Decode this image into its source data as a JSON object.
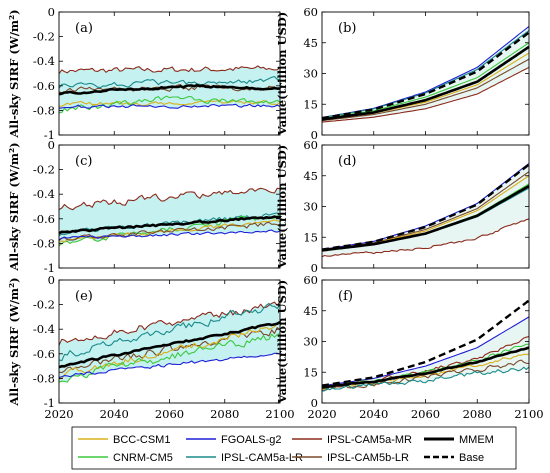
{
  "legend": {
    "entries": [
      {
        "name": "BCC-CSM1",
        "color": "#d9b01c",
        "style": "solid"
      },
      {
        "name": "FGOALS-g2",
        "color": "#1f1fd6",
        "style": "solid"
      },
      {
        "name": "IPSL-CAM5a-MR",
        "color": "#8c2a1c",
        "style": "solid"
      },
      {
        "name": "MMEM",
        "color": "#000000",
        "style": "bold"
      },
      {
        "name": "CNRM-CM5",
        "color": "#3ec83e",
        "style": "solid"
      },
      {
        "name": "IPSL-CAM5a-LR",
        "color": "#1a8a8a",
        "style": "solid"
      },
      {
        "name": "IPSL-CAM5b-LR",
        "color": "#7a4a2a",
        "style": "solid"
      },
      {
        "name": "Base",
        "color": "#000000",
        "style": "dashed"
      }
    ]
  },
  "chart_data": [
    {
      "panel": "(a)",
      "type": "line",
      "ylabel": "All-sky SIRF (W/m²)",
      "xlabel": "",
      "xlim": [
        2020,
        2100
      ],
      "ylim": [
        -1,
        0
      ],
      "xticks": [
        2020,
        2040,
        2060,
        2080,
        2100
      ],
      "yticks": [
        -1,
        -0.8,
        -0.6,
        -0.4,
        -0.2,
        0
      ],
      "band_color": "#7fe0e0",
      "series": [
        {
          "name": "IPSL-CAM5a-MR",
          "x": [
            2020,
            2100
          ],
          "y": [
            -0.48,
            -0.46
          ],
          "noise": 0.022
        },
        {
          "name": "IPSL-CAM5a-LR",
          "x": [
            2020,
            2100
          ],
          "y": [
            -0.6,
            -0.55
          ],
          "noise": 0.02
        },
        {
          "name": "IPSL-CAM5b-LR",
          "x": [
            2020,
            2100
          ],
          "y": [
            -0.63,
            -0.61
          ],
          "noise": 0.02
        },
        {
          "name": "BCC-CSM1",
          "x": [
            2020,
            2100
          ],
          "y": [
            -0.75,
            -0.73
          ],
          "noise": 0.015
        },
        {
          "name": "CNRM-CM5",
          "x": [
            2020,
            2060,
            2100
          ],
          "y": [
            -0.8,
            -0.7,
            -0.74
          ],
          "noise": 0.02
        },
        {
          "name": "FGOALS-g2",
          "x": [
            2020,
            2100
          ],
          "y": [
            -0.77,
            -0.76
          ],
          "noise": 0.012
        },
        {
          "name": "MMEM",
          "x": [
            2020,
            2070,
            2100
          ],
          "y": [
            -0.66,
            -0.6,
            -0.63
          ],
          "noise": 0.008
        }
      ]
    },
    {
      "panel": "(b)",
      "type": "line",
      "ylabel": "Value(trillion USD)",
      "xlabel": "",
      "xlim": [
        2020,
        2100
      ],
      "ylim": [
        0,
        60
      ],
      "xticks": [
        2020,
        2040,
        2060,
        2080,
        2100
      ],
      "yticks": [
        0,
        15,
        30,
        45,
        60
      ],
      "band_color": "#c9ece3",
      "series": [
        {
          "name": "FGOALS-g2",
          "x": [
            2020,
            2040,
            2060,
            2080,
            2100
          ],
          "y": [
            8.5,
            13,
            21,
            33,
            53
          ],
          "noise": 0
        },
        {
          "name": "IPSL-CAM5a-LR",
          "x": [
            2020,
            2040,
            2060,
            2080,
            2100
          ],
          "y": [
            8.4,
            12.8,
            20.5,
            32,
            51
          ],
          "noise": 0
        },
        {
          "name": "Base",
          "x": [
            2020,
            2040,
            2060,
            2080,
            2100
          ],
          "y": [
            8.2,
            12.5,
            20,
            31,
            50
          ],
          "noise": 0
        },
        {
          "name": "CNRM-CM5",
          "x": [
            2020,
            2040,
            2060,
            2080,
            2100
          ],
          "y": [
            8,
            11.8,
            18.5,
            28,
            45
          ],
          "noise": 0
        },
        {
          "name": "MMEM",
          "x": [
            2020,
            2040,
            2060,
            2080,
            2100
          ],
          "y": [
            7.6,
            11,
            17,
            26,
            43
          ],
          "noise": 0
        },
        {
          "name": "BCC-CSM1",
          "x": [
            2020,
            2040,
            2060,
            2080,
            2100
          ],
          "y": [
            7.4,
            10.6,
            16,
            24.5,
            40
          ],
          "noise": 0
        },
        {
          "name": "IPSL-CAM5b-LR",
          "x": [
            2020,
            2040,
            2060,
            2080,
            2100
          ],
          "y": [
            7,
            10,
            15,
            23,
            37
          ],
          "noise": 0
        },
        {
          "name": "IPSL-CAM5a-MR",
          "x": [
            2020,
            2040,
            2060,
            2080,
            2100
          ],
          "y": [
            6.3,
            8.7,
            12.8,
            20,
            33
          ],
          "noise": 0
        }
      ]
    },
    {
      "panel": "(c)",
      "type": "line",
      "ylabel": "All-sky SIRF (W/m²)",
      "xlabel": "",
      "xlim": [
        2020,
        2100
      ],
      "ylim": [
        -1,
        0
      ],
      "xticks": [
        2020,
        2040,
        2060,
        2080,
        2100
      ],
      "yticks": [
        -1,
        -0.8,
        -0.6,
        -0.4,
        -0.2,
        0
      ],
      "band_color": "#7fe0e0",
      "series": [
        {
          "name": "IPSL-CAM5a-MR",
          "x": [
            2020,
            2100
          ],
          "y": [
            -0.5,
            -0.35
          ],
          "noise": 0.025
        },
        {
          "name": "IPSL-CAM5a-LR",
          "x": [
            2020,
            2100
          ],
          "y": [
            -0.72,
            -0.56
          ],
          "noise": 0.018
        },
        {
          "name": "CNRM-CM5",
          "x": [
            2020,
            2100
          ],
          "y": [
            -0.8,
            -0.57
          ],
          "noise": 0.02
        },
        {
          "name": "BCC-CSM1",
          "x": [
            2020,
            2100
          ],
          "y": [
            -0.78,
            -0.62
          ],
          "noise": 0.015
        },
        {
          "name": "IPSL-CAM5b-LR",
          "x": [
            2020,
            2100
          ],
          "y": [
            -0.76,
            -0.64
          ],
          "noise": 0.018
        },
        {
          "name": "FGOALS-g2",
          "x": [
            2020,
            2100
          ],
          "y": [
            -0.76,
            -0.7
          ],
          "noise": 0.01
        },
        {
          "name": "MMEM",
          "x": [
            2020,
            2100
          ],
          "y": [
            -0.71,
            -0.58
          ],
          "noise": 0.008
        }
      ]
    },
    {
      "panel": "(d)",
      "type": "line",
      "ylabel": "Value(trillion USD)",
      "xlabel": "",
      "xlim": [
        2020,
        2100
      ],
      "ylim": [
        0,
        60
      ],
      "xticks": [
        2020,
        2040,
        2060,
        2080,
        2100
      ],
      "yticks": [
        0,
        15,
        30,
        45,
        60
      ],
      "band_color": "#c9ece3",
      "series": [
        {
          "name": "FGOALS-g2",
          "x": [
            2020,
            2040,
            2060,
            2080,
            2100
          ],
          "y": [
            9,
            13,
            20.5,
            31.5,
            51
          ],
          "noise": 0
        },
        {
          "name": "Base",
          "x": [
            2020,
            2040,
            2060,
            2080,
            2100
          ],
          "y": [
            9,
            12.8,
            20,
            31,
            50.5
          ],
          "noise": 0
        },
        {
          "name": "IPSL-CAM5b-LR",
          "x": [
            2020,
            2040,
            2060,
            2080,
            2100
          ],
          "y": [
            8.8,
            12.3,
            18.8,
            29,
            47
          ],
          "noise": 0
        },
        {
          "name": "BCC-CSM1",
          "x": [
            2020,
            2040,
            2060,
            2080,
            2100
          ],
          "y": [
            8.7,
            12,
            18,
            28,
            45
          ],
          "noise": 0
        },
        {
          "name": "CNRM-CM5",
          "x": [
            2020,
            2040,
            2060,
            2080,
            2100
          ],
          "y": [
            8.6,
            11.7,
            17,
            26,
            41
          ],
          "noise": 0
        },
        {
          "name": "MMEM",
          "x": [
            2020,
            2040,
            2060,
            2080,
            2100
          ],
          "y": [
            8.6,
            11.6,
            16.8,
            25.5,
            40
          ],
          "noise": 0
        },
        {
          "name": "IPSL-CAM5a-LR",
          "x": [
            2020,
            2040,
            2060,
            2080,
            2100
          ],
          "y": [
            8.5,
            11.5,
            16.5,
            25,
            39
          ],
          "noise": 0
        },
        {
          "name": "IPSL-CAM5a-MR",
          "x": [
            2020,
            2040,
            2060,
            2080,
            2100
          ],
          "y": [
            6,
            7.5,
            10,
            14.5,
            24
          ],
          "noise": 0.5
        }
      ]
    },
    {
      "panel": "(e)",
      "type": "line",
      "ylabel": "All-sky SIRF (W/m²)",
      "xlabel": "",
      "xlim": [
        2020,
        2100
      ],
      "ylim": [
        -1,
        0
      ],
      "xticks": [
        2020,
        2040,
        2060,
        2080,
        2100
      ],
      "yticks": [
        -1,
        -0.8,
        -0.6,
        -0.4,
        -0.2,
        0
      ],
      "band_color": "#7fe0e0",
      "series": [
        {
          "name": "IPSL-CAM5a-MR",
          "x": [
            2020,
            2100
          ],
          "y": [
            -0.5,
            -0.2
          ],
          "noise": 0.03
        },
        {
          "name": "IPSL-CAM5a-LR",
          "x": [
            2020,
            2100
          ],
          "y": [
            -0.62,
            -0.2
          ],
          "noise": 0.03
        },
        {
          "name": "IPSL-CAM5b-LR",
          "x": [
            2020,
            2100
          ],
          "y": [
            -0.72,
            -0.4
          ],
          "noise": 0.03
        },
        {
          "name": "BCC-CSM1",
          "x": [
            2020,
            2100
          ],
          "y": [
            -0.78,
            -0.37
          ],
          "noise": 0.025
        },
        {
          "name": "CNRM-CM5",
          "x": [
            2020,
            2100
          ],
          "y": [
            -0.8,
            -0.45
          ],
          "noise": 0.03
        },
        {
          "name": "FGOALS-g2",
          "x": [
            2020,
            2100
          ],
          "y": [
            -0.78,
            -0.6
          ],
          "noise": 0.012
        },
        {
          "name": "MMEM",
          "x": [
            2020,
            2100
          ],
          "y": [
            -0.7,
            -0.35
          ],
          "noise": 0.008
        }
      ]
    },
    {
      "panel": "(f)",
      "type": "line",
      "ylabel": "Value(trillion USD)",
      "xlabel": "",
      "xlim": [
        2020,
        2100
      ],
      "ylim": [
        0,
        60
      ],
      "xticks": [
        2020,
        2040,
        2060,
        2080,
        2100
      ],
      "yticks": [
        0,
        15,
        30,
        45,
        60
      ],
      "band_color": "#c9ece3",
      "series": [
        {
          "name": "Base",
          "x": [
            2020,
            2040,
            2060,
            2080,
            2100
          ],
          "y": [
            8.5,
            12.5,
            20,
            31,
            50
          ],
          "noise": 0
        },
        {
          "name": "FGOALS-g2",
          "x": [
            2020,
            2040,
            2060,
            2080,
            2100
          ],
          "y": [
            8.4,
            12,
            18,
            27,
            42
          ],
          "noise": 0
        },
        {
          "name": "IPSL-CAM5a-MR",
          "x": [
            2020,
            2040,
            2060,
            2080,
            2100
          ],
          "y": [
            8,
            11,
            15.5,
            22,
            32
          ],
          "noise": 0.8
        },
        {
          "name": "CNRM-CM5",
          "x": [
            2020,
            2040,
            2060,
            2080,
            2100
          ],
          "y": [
            8,
            11,
            15,
            21,
            29
          ],
          "noise": 0.8
        },
        {
          "name": "MMEM",
          "x": [
            2020,
            2040,
            2060,
            2080,
            2100
          ],
          "y": [
            7.8,
            10.5,
            14.5,
            20,
            27
          ],
          "noise": 0.2
        },
        {
          "name": "BCC-CSM1",
          "x": [
            2020,
            2040,
            2060,
            2080,
            2100
          ],
          "y": [
            7.6,
            10,
            13.5,
            18.5,
            24
          ],
          "noise": 0.8
        },
        {
          "name": "IPSL-CAM5b-LR",
          "x": [
            2020,
            2040,
            2060,
            2080,
            2100
          ],
          "y": [
            7.2,
            9.3,
            12.5,
            16.5,
            20
          ],
          "noise": 1
        },
        {
          "name": "IPSL-CAM5a-LR",
          "x": [
            2020,
            2040,
            2060,
            2080,
            2100
          ],
          "y": [
            6.8,
            8.5,
            11,
            14.5,
            17
          ],
          "noise": 1
        }
      ]
    }
  ]
}
